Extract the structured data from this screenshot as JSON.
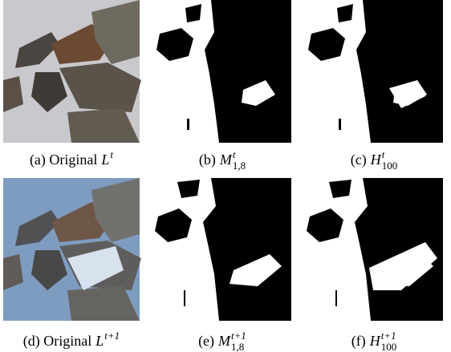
{
  "panels": [
    {
      "label": "(a) Original",
      "symbol": "L",
      "sup": "t"
    },
    {
      "label": "(b)",
      "symbol": "M",
      "sup": "t",
      "sub": "1,8"
    },
    {
      "label": "(c)",
      "symbol": "H",
      "sup": "t",
      "sub": "100"
    },
    {
      "label": "(d) Original",
      "symbol": "L",
      "sup": "t+1"
    },
    {
      "label": "(e)",
      "symbol": "M",
      "sup": "t+1",
      "sub": "1,8"
    },
    {
      "label": "(f)",
      "symbol": "H",
      "sup": "t+1",
      "sub": "100"
    }
  ]
}
